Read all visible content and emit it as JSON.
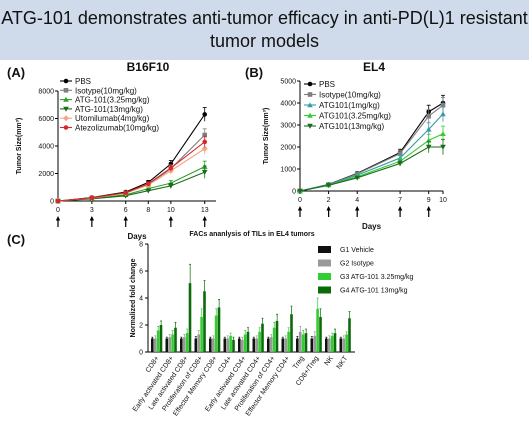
{
  "header": {
    "title": "ATG-101 demonstrates anti-tumor efficacy in anti-PD(L)1 resistant tumor models"
  },
  "colors": {
    "banner": "#cfdbea"
  },
  "chart_data": [
    {
      "panel": "(A)",
      "title": "B16F10",
      "type": "line",
      "xlabel": "Days",
      "ylabel": "Tumor Size(mm³)",
      "xlim": [
        0,
        14
      ],
      "ylim": [
        0,
        8000
      ],
      "xticks": [
        "0",
        "3",
        "6",
        "8",
        "10",
        "13"
      ],
      "yticks": [
        "0",
        "2000",
        "4000",
        "6000",
        "8000"
      ],
      "dosing_days": [
        0,
        3,
        6,
        10,
        13
      ],
      "x": [
        0,
        3,
        6,
        8,
        10,
        13
      ],
      "legend_position": "top-left",
      "series": [
        {
          "name": "PBS",
          "color": "#000000",
          "marker": "circle",
          "values": [
            0,
            250,
            650,
            1350,
            2700,
            6300
          ],
          "errors": [
            0,
            40,
            80,
            150,
            250,
            500
          ]
        },
        {
          "name": "Isotype(10mg/kg)",
          "color": "#7f7f7f",
          "marker": "square",
          "values": [
            0,
            220,
            580,
            1200,
            2350,
            4800
          ],
          "errors": [
            0,
            40,
            80,
            150,
            250,
            450
          ]
        },
        {
          "name": "ATG-101(3.25mg/kg)",
          "color": "#2ca02c",
          "marker": "triangle",
          "values": [
            0,
            180,
            450,
            900,
            1300,
            2500
          ],
          "errors": [
            0,
            30,
            60,
            120,
            200,
            400
          ]
        },
        {
          "name": "ATG-101(13mg/kg)",
          "color": "#1a6b1a",
          "marker": "triangle-down",
          "values": [
            0,
            160,
            380,
            750,
            1100,
            2100
          ],
          "errors": [
            0,
            30,
            60,
            110,
            180,
            450
          ]
        },
        {
          "name": "Utomilumab(4mg/kg)",
          "color": "#f4a582",
          "marker": "diamond",
          "values": [
            0,
            210,
            560,
            1150,
            2200,
            3800
          ],
          "errors": [
            0,
            40,
            80,
            140,
            220,
            400
          ]
        },
        {
          "name": "Atezolizumab(10mg/kg)",
          "color": "#d62728",
          "marker": "circle",
          "values": [
            0,
            230,
            600,
            1250,
            2400,
            4300
          ],
          "errors": [
            0,
            40,
            80,
            150,
            240,
            420
          ]
        }
      ]
    },
    {
      "panel": "(B)",
      "title": "EL4",
      "type": "line",
      "xlabel": "Days",
      "ylabel": "Tumor Size(mm³)",
      "xlim": [
        0,
        10
      ],
      "ylim": [
        0,
        5000
      ],
      "xticks": [
        "0",
        "2",
        "4",
        "7",
        "9",
        "10"
      ],
      "yticks": [
        "0",
        "1000",
        "2000",
        "3000",
        "4000",
        "5000"
      ],
      "dosing_days": [
        0,
        2,
        4,
        7,
        9
      ],
      "x": [
        0,
        2,
        4,
        7,
        9,
        10
      ],
      "legend_position": "top-left",
      "series": [
        {
          "name": "PBS",
          "color": "#000000",
          "marker": "circle",
          "values": [
            0,
            300,
            800,
            1750,
            3600,
            4000
          ],
          "errors": [
            0,
            30,
            80,
            150,
            300,
            350
          ]
        },
        {
          "name": "Isotype(10mg/kg)",
          "color": "#7f7f7f",
          "marker": "square",
          "values": [
            0,
            290,
            780,
            1700,
            3400,
            3900
          ],
          "errors": [
            0,
            30,
            80,
            150,
            300,
            350
          ]
        },
        {
          "name": "ATG101(1mg/kg)",
          "color": "#3a9aa8",
          "marker": "triangle",
          "values": [
            0,
            280,
            720,
            1500,
            2800,
            3500
          ],
          "errors": [
            0,
            30,
            70,
            140,
            300,
            350
          ]
        },
        {
          "name": "ATG101(3.25mg/kg)",
          "color": "#33cc33",
          "marker": "triangle",
          "values": [
            0,
            270,
            650,
            1350,
            2300,
            2600
          ],
          "errors": [
            0,
            30,
            60,
            130,
            280,
            350
          ]
        },
        {
          "name": "ATG101(13mg/kg)",
          "color": "#1a6b1a",
          "marker": "triangle-down",
          "values": [
            0,
            260,
            600,
            1250,
            2000,
            2000
          ],
          "errors": [
            0,
            30,
            60,
            120,
            260,
            350
          ]
        }
      ]
    },
    {
      "panel": "(C)",
      "title": "FACs ananlysis of TILs in EL4 tumors",
      "type": "bar",
      "ylabel": "Normalized fold change",
      "ylim": [
        0,
        8
      ],
      "yticks": [
        "0",
        "2",
        "4",
        "6",
        "8"
      ],
      "legend_position": "right",
      "categories": [
        "CD8+",
        "Early activated CD8+",
        "Late activated CD8+",
        "Proliferation of CD8+",
        "Effector Memory CD8+",
        "CD4+",
        "Early activated CD4+",
        "Late activated CD4+",
        "Proliferation of CD4+",
        "Effector Memory CD4+",
        "Treg",
        "CD8+/Treg",
        "NK",
        "NKT"
      ],
      "series": [
        {
          "name": "G1 Vehicle",
          "color": "#111111",
          "values": [
            1.0,
            1.0,
            1.0,
            1.0,
            1.0,
            1.0,
            1.0,
            1.0,
            1.0,
            1.0,
            1.0,
            1.0,
            1.0,
            1.0
          ],
          "errors": [
            0.1,
            0.1,
            0.1,
            0.15,
            0.1,
            0.1,
            0.1,
            0.1,
            0.1,
            0.1,
            0.15,
            0.15,
            0.1,
            0.1
          ]
        },
        {
          "name": "G2 Isotype",
          "color": "#999999",
          "values": [
            1.0,
            1.1,
            1.1,
            1.3,
            1.0,
            1.0,
            0.9,
            1.0,
            1.1,
            1.0,
            1.5,
            1.2,
            1.0,
            1.0
          ],
          "errors": [
            0.2,
            0.2,
            0.2,
            0.3,
            0.2,
            0.2,
            0.2,
            0.2,
            0.2,
            0.2,
            0.4,
            0.3,
            0.2,
            0.2
          ]
        },
        {
          "name": "G3 ATG-101 3.25mg/kg",
          "color": "#33cc33",
          "values": [
            1.6,
            1.3,
            1.4,
            2.6,
            2.7,
            1.2,
            1.3,
            1.5,
            1.8,
            1.5,
            1.3,
            3.2,
            1.2,
            1.3
          ],
          "errors": [
            0.3,
            0.3,
            0.3,
            0.6,
            0.5,
            0.2,
            0.3,
            0.3,
            0.4,
            0.3,
            0.3,
            0.8,
            0.2,
            0.2
          ]
        },
        {
          "name": "G4 ATG-101 13mg/kg",
          "color": "#0b6b0b",
          "values": [
            2.0,
            1.8,
            5.1,
            4.5,
            3.3,
            0.9,
            1.5,
            2.1,
            2.3,
            2.8,
            1.4,
            2.6,
            1.4,
            2.5
          ],
          "errors": [
            0.3,
            0.4,
            1.4,
            0.8,
            0.6,
            0.2,
            0.3,
            0.4,
            0.5,
            0.6,
            0.3,
            0.6,
            0.3,
            0.5
          ]
        }
      ]
    }
  ]
}
